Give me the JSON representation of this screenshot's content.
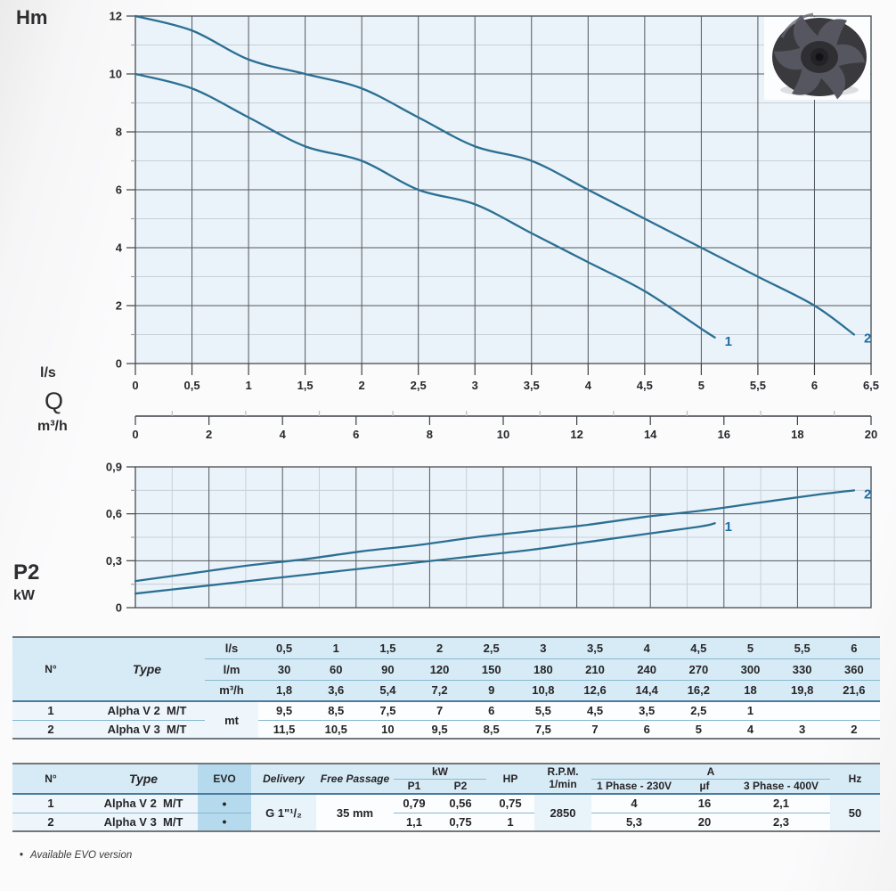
{
  "chart_data": [
    {
      "type": "line",
      "ylabel": "Hm",
      "x_title": "Q",
      "x_unit_ls": "l/s",
      "x_unit_m3h": "m³/h",
      "ylim": [
        0,
        12
      ],
      "xlim_ls": [
        0,
        6.5
      ],
      "xlim_m3h": [
        0,
        20
      ],
      "grid": true,
      "legend": "inline-end-labels",
      "y_ticks": [
        "12",
        "10",
        "8",
        "6",
        "4",
        "2",
        "0"
      ],
      "x_ticks_ls": [
        "0",
        "0,5",
        "1",
        "1,5",
        "2",
        "2,5",
        "3",
        "3,5",
        "4",
        "4,5",
        "5",
        "5,5",
        "6",
        "6,5"
      ],
      "x_ticks_m3h": [
        "0",
        "2",
        "4",
        "6",
        "8",
        "10",
        "12",
        "14",
        "16",
        "18",
        "20"
      ],
      "series": [
        {
          "name": "1",
          "points": [
            [
              0,
              10
            ],
            [
              0.5,
              9.5
            ],
            [
              1,
              8.5
            ],
            [
              1.5,
              7.5
            ],
            [
              2,
              7
            ],
            [
              2.5,
              6
            ],
            [
              3,
              5.5
            ],
            [
              3.5,
              4.5
            ],
            [
              4,
              3.5
            ],
            [
              4.5,
              2.5
            ],
            [
              5,
              1.2
            ],
            [
              5.12,
              0.9
            ]
          ]
        },
        {
          "name": "2",
          "points": [
            [
              0,
              12
            ],
            [
              0.5,
              11.5
            ],
            [
              1,
              10.5
            ],
            [
              1.5,
              10
            ],
            [
              2,
              9.5
            ],
            [
              2.5,
              8.5
            ],
            [
              3,
              7.5
            ],
            [
              3.5,
              7
            ],
            [
              4,
              6
            ],
            [
              4.5,
              5
            ],
            [
              5,
              4
            ],
            [
              5.5,
              3
            ],
            [
              6,
              2
            ],
            [
              6.35,
              1
            ]
          ]
        }
      ]
    },
    {
      "type": "line",
      "ylabel": "P2",
      "y_unit": "kW",
      "ylim": [
        0,
        0.9
      ],
      "xlim_ls": [
        0,
        6.5
      ],
      "grid": true,
      "legend": "inline-end-labels",
      "y_ticks": [
        "0,9",
        "0,6",
        "0,3",
        "0"
      ],
      "series": [
        {
          "name": "1",
          "points": [
            [
              0,
              0.09
            ],
            [
              0.5,
              0.13
            ],
            [
              1,
              0.17
            ],
            [
              1.5,
              0.21
            ],
            [
              2,
              0.25
            ],
            [
              2.5,
              0.29
            ],
            [
              3,
              0.33
            ],
            [
              3.5,
              0.37
            ],
            [
              4,
              0.42
            ],
            [
              4.5,
              0.47
            ],
            [
              5,
              0.52
            ],
            [
              5.12,
              0.54
            ]
          ]
        },
        {
          "name": "2",
          "points": [
            [
              0,
              0.17
            ],
            [
              0.5,
              0.22
            ],
            [
              1,
              0.27
            ],
            [
              1.5,
              0.31
            ],
            [
              2,
              0.36
            ],
            [
              2.5,
              0.4
            ],
            [
              3,
              0.45
            ],
            [
              3.5,
              0.49
            ],
            [
              4,
              0.53
            ],
            [
              4.5,
              0.58
            ],
            [
              5,
              0.62
            ],
            [
              5.5,
              0.67
            ],
            [
              6,
              0.72
            ],
            [
              6.35,
              0.75
            ]
          ]
        }
      ]
    }
  ],
  "table1": {
    "col_n": "N°",
    "col_type": "Type",
    "unit_rows": [
      {
        "unit": "l/s",
        "values": [
          "0,5",
          "1",
          "1,5",
          "2",
          "2,5",
          "3",
          "3,5",
          "4",
          "4,5",
          "5",
          "5,5",
          "6"
        ]
      },
      {
        "unit": "l/m",
        "values": [
          "30",
          "60",
          "90",
          "120",
          "150",
          "180",
          "210",
          "240",
          "270",
          "300",
          "330",
          "360"
        ]
      },
      {
        "unit": "m³/h",
        "values": [
          "1,8",
          "3,6",
          "5,4",
          "7,2",
          "9",
          "10,8",
          "12,6",
          "14,4",
          "16,2",
          "18",
          "19,8",
          "21,6"
        ]
      }
    ],
    "data_unit": "mt",
    "rows": [
      {
        "n": "1",
        "type": "Alpha V 2  M/T",
        "values": [
          "9,5",
          "8,5",
          "7,5",
          "7",
          "6",
          "5,5",
          "4,5",
          "3,5",
          "2,5",
          "1",
          "",
          ""
        ]
      },
      {
        "n": "2",
        "type": "Alpha V 3  M/T",
        "values": [
          "11,5",
          "10,5",
          "10",
          "9,5",
          "8,5",
          "7,5",
          "7",
          "6",
          "5",
          "4",
          "3",
          "2"
        ]
      }
    ]
  },
  "table2": {
    "headers": {
      "n": "N°",
      "type": "Type",
      "evo": "EVO",
      "delivery": "Delivery",
      "free_passage": "Free Passage",
      "kw": "kW",
      "p1": "P1",
      "p2": "P2",
      "hp": "HP",
      "rpm_line1": "R.P.M.",
      "rpm_line2": "1/min",
      "a": "A",
      "phase1": "1 Phase - 230V",
      "uf": "µf",
      "phase3": "3 Phase - 400V",
      "hz": "Hz"
    },
    "shared": {
      "delivery": "G 1\"¹/₂",
      "free_passage": "35 mm",
      "rpm": "2850",
      "hz": "50"
    },
    "rows": [
      {
        "n": "1",
        "type": "Alpha V 2  M/T",
        "evo": "•",
        "p1": "0,79",
        "p2": "0,56",
        "hp": "0,75",
        "phase1": "4",
        "uf": "16",
        "phase3": "2,1"
      },
      {
        "n": "2",
        "type": "Alpha V 3  M/T",
        "evo": "•",
        "p1": "1,1",
        "p2": "0,75",
        "hp": "1",
        "phase1": "5,3",
        "uf": "20",
        "phase3": "2,3"
      }
    ]
  },
  "footnote": {
    "bullet": "•",
    "text": "Available EVO version"
  },
  "colors": {
    "curve": "#2c6f93",
    "curve_label": "#1e6ca6",
    "plot_bg": "#eaf3f9",
    "grid_major": "#52575d",
    "grid_minor": "#c7d0d7"
  }
}
